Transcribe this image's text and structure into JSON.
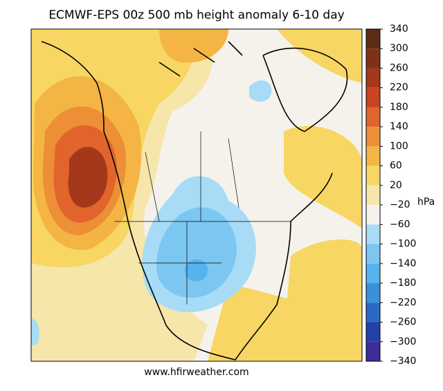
{
  "title": "ECMWF-EPS 00z 500 mb height anomaly 6-10 day",
  "footer": "www.hfirweather.com",
  "colorbar": {
    "label": "hPa",
    "lim": [
      -340,
      340
    ],
    "ticks": [
      340,
      300,
      260,
      220,
      180,
      140,
      100,
      60,
      20,
      {
        "value": -20,
        "label": "−20"
      },
      {
        "value": -60,
        "label": "−60"
      },
      {
        "value": -100,
        "label": "−100"
      },
      {
        "value": -140,
        "label": "−140"
      },
      {
        "value": -180,
        "label": "−180"
      },
      {
        "value": -220,
        "label": "−220"
      },
      {
        "value": -260,
        "label": "−260"
      },
      {
        "value": -300,
        "label": "−300"
      },
      {
        "value": -340,
        "label": "−340"
      }
    ],
    "colors": [
      "#5c2c17",
      "#7d3217",
      "#a5371b",
      "#c9441f",
      "#e0642b",
      "#ec8f36",
      "#f4b545",
      "#f7d663",
      "#f6e6aa",
      "#f5f2ec",
      "#a8dcf6",
      "#7cc7f1",
      "#57b3ec",
      "#3b8fdb",
      "#2c69c6",
      "#2442a6",
      "#3c2d98",
      "#6b2b8e"
    ]
  }
}
